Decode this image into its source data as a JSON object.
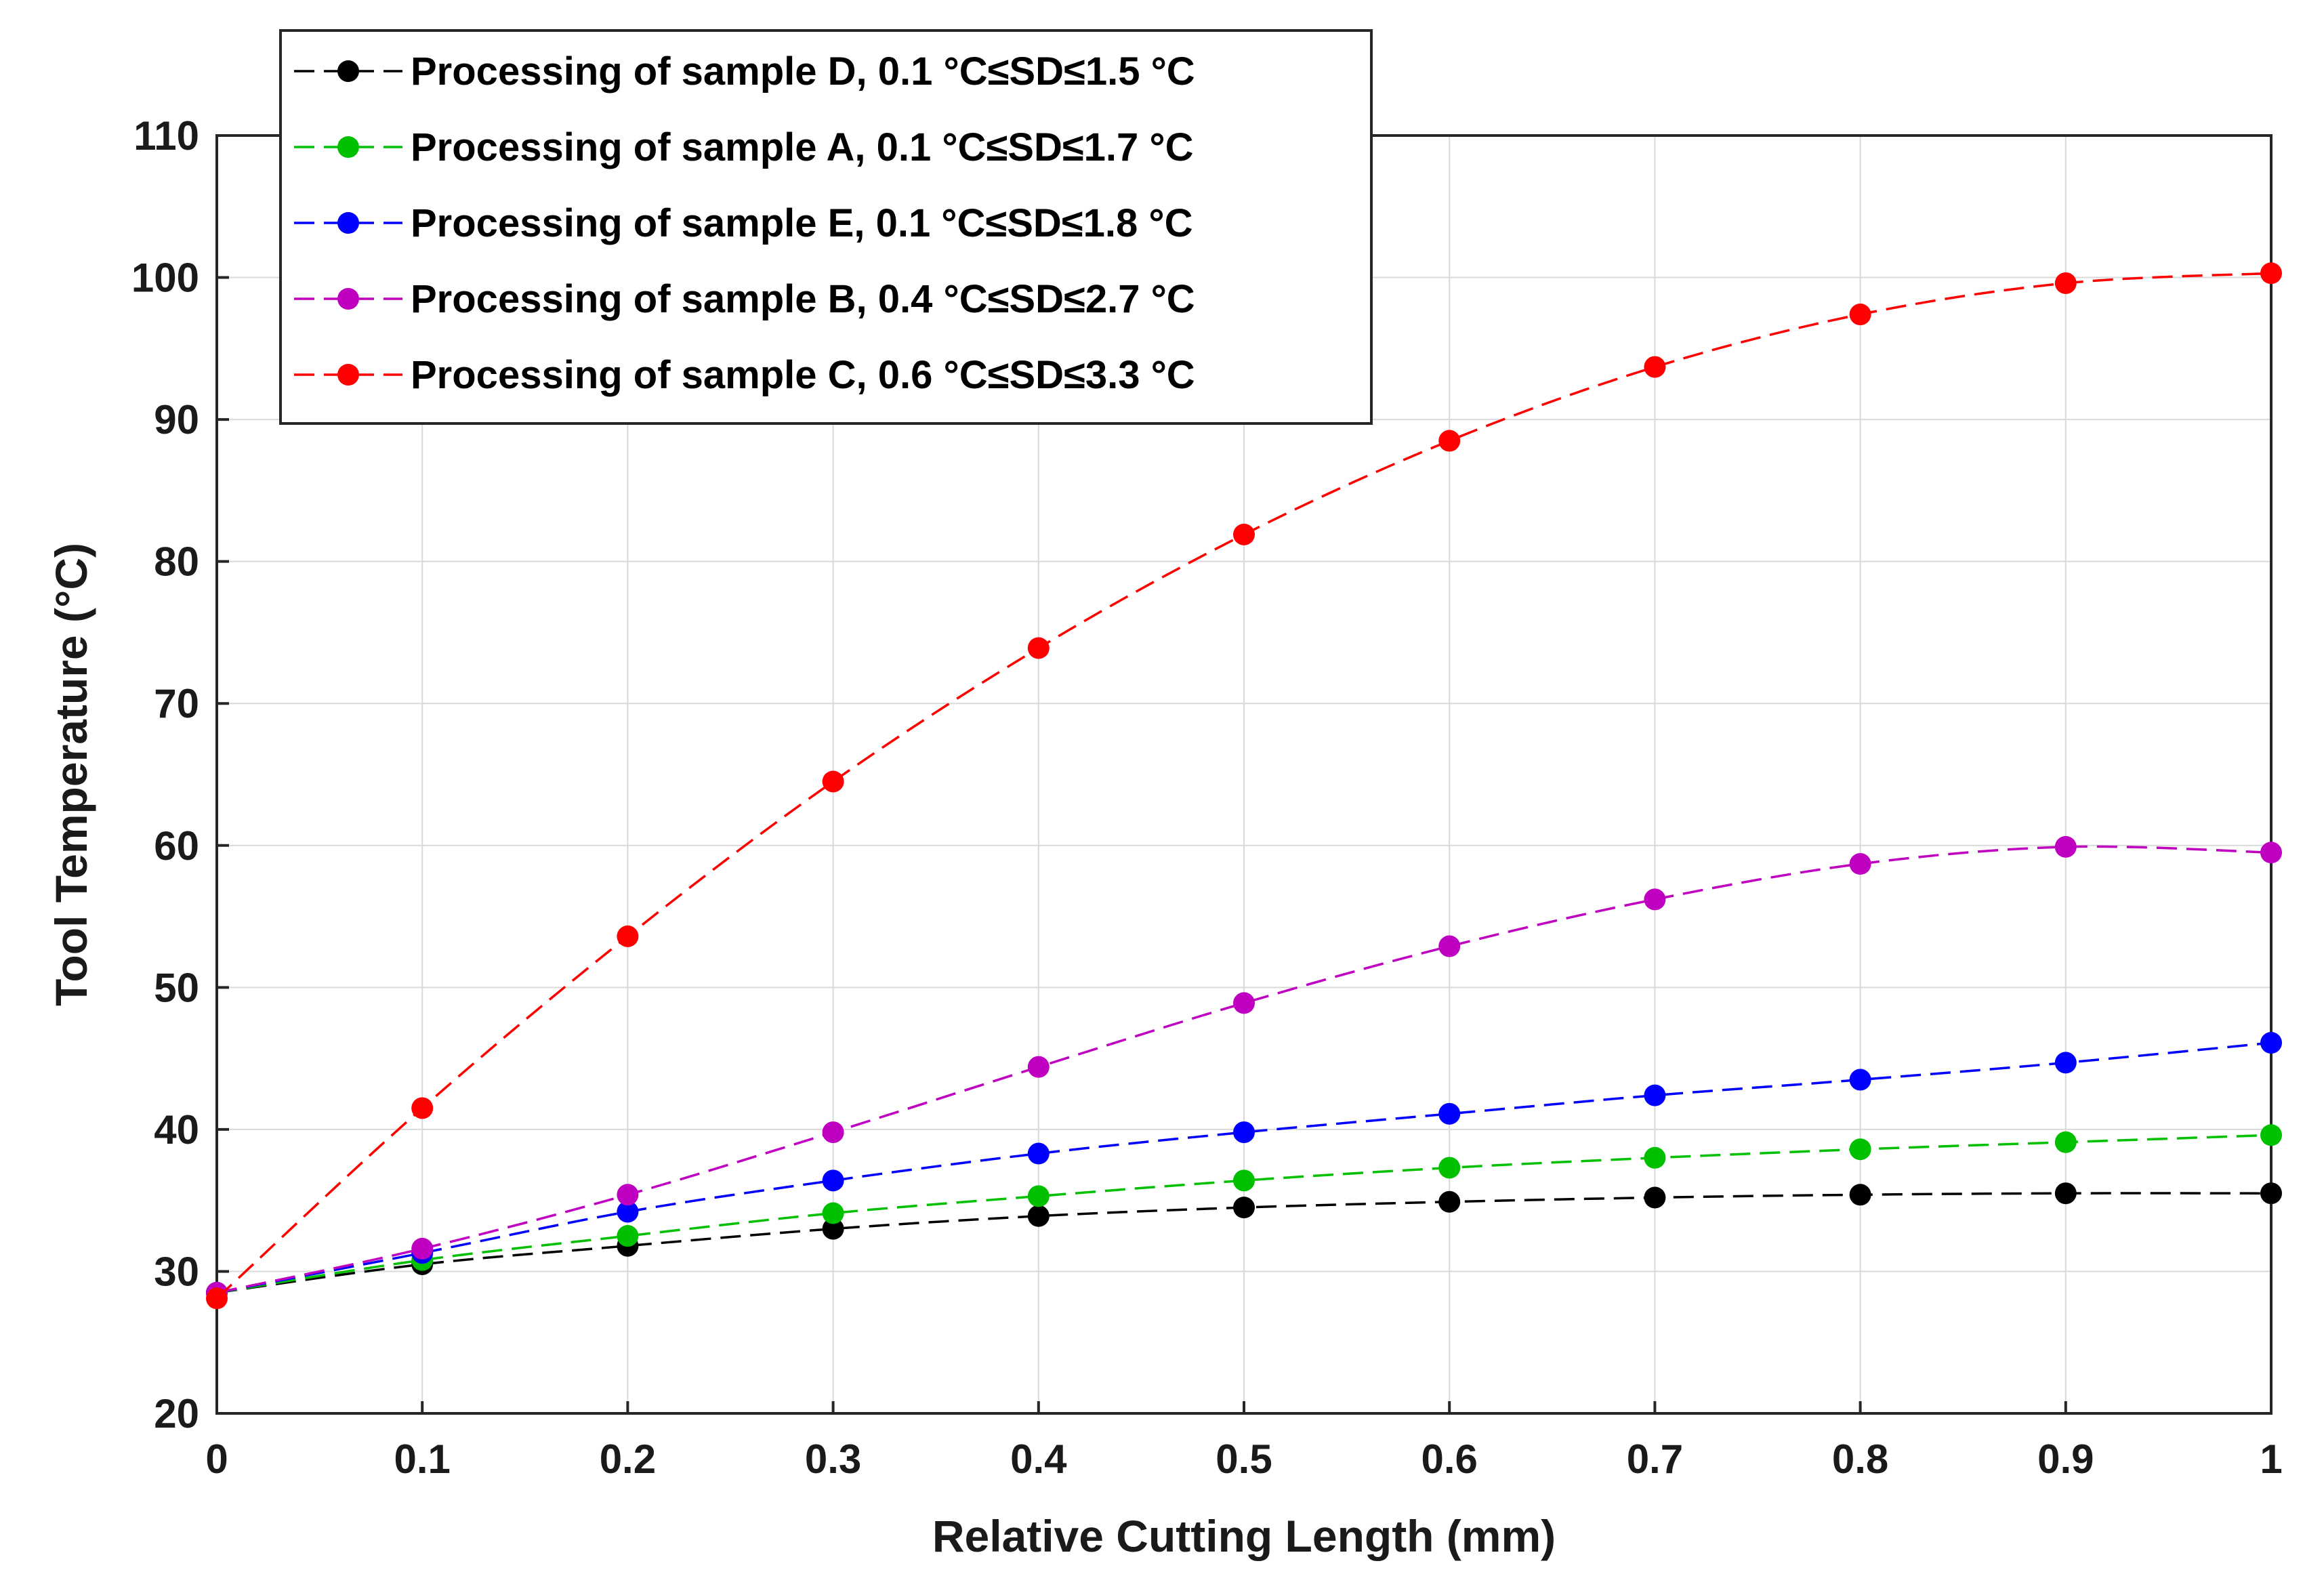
{
  "chart_data": {
    "type": "line",
    "title": "",
    "xlabel": "Relative Cutting Length (mm)",
    "ylabel": "Tool Temperature (°C)",
    "xlim": [
      0,
      1
    ],
    "ylim": [
      20,
      110
    ],
    "grid": true,
    "legend_position": "top-left",
    "x": [
      0,
      0.1,
      0.2,
      0.3,
      0.4,
      0.5,
      0.6,
      0.7,
      0.8,
      0.9,
      1
    ],
    "x_tick_labels": [
      "0",
      "0.1",
      "0.2",
      "0.3",
      "0.4",
      "0.5",
      "0.6",
      "0.7",
      "0.8",
      "0.9",
      "1"
    ],
    "y_ticks": [
      20,
      30,
      40,
      50,
      60,
      70,
      80,
      90,
      100,
      110
    ],
    "y_tick_labels": [
      "20",
      "30",
      "40",
      "50",
      "60",
      "70",
      "80",
      "90",
      "100",
      "110"
    ],
    "series": [
      {
        "name": "Processing of sample D,  0.1 °C≤SD≤1.5 °C",
        "key": "sample-d",
        "color": "#000000",
        "values": [
          28.5,
          30.5,
          31.8,
          33.0,
          33.9,
          34.5,
          34.9,
          35.2,
          35.4,
          35.5,
          35.5
        ]
      },
      {
        "name": "Processing of sample A,  0.1 °C≤SD≤1.7 °C",
        "key": "sample-a",
        "color": "#00c000",
        "values": [
          28.5,
          30.8,
          32.5,
          34.1,
          35.3,
          36.4,
          37.3,
          38.0,
          38.6,
          39.1,
          39.6
        ]
      },
      {
        "name": "Processing of sample E,  0.1 °C≤SD≤1.8 °C",
        "key": "sample-e",
        "color": "#0000ff",
        "values": [
          28.5,
          31.3,
          34.2,
          36.4,
          38.3,
          39.8,
          41.1,
          42.4,
          43.5,
          44.7,
          46.1
        ]
      },
      {
        "name": "Processing of sample B,  0.4 °C≤SD≤2.7 °C",
        "key": "sample-b",
        "color": "#c000c0",
        "values": [
          28.5,
          31.6,
          35.4,
          39.8,
          44.4,
          48.9,
          52.9,
          56.2,
          58.7,
          59.9,
          59.5
        ]
      },
      {
        "name": "Processing of sample C,  0.6 °C≤SD≤3.3 °C",
        "key": "sample-c",
        "color": "#ff0000",
        "values": [
          28.1,
          41.5,
          53.6,
          64.5,
          73.9,
          81.9,
          88.5,
          93.7,
          97.4,
          99.6,
          100.3
        ]
      }
    ]
  }
}
